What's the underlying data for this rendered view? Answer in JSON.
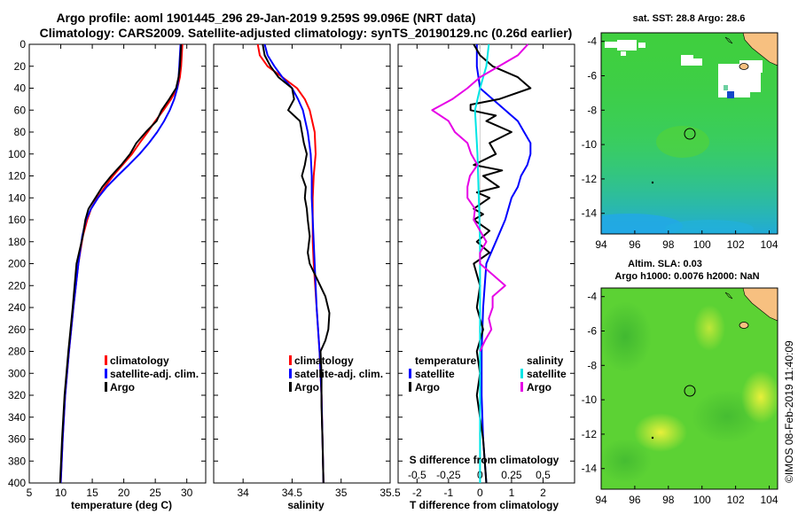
{
  "titles": {
    "line1": "Argo profile: aoml 1901445_296 29-Jan-2019 9.259S 99.096E (NRT data)",
    "line2": "Climatology: CARS2009. Satellite-adjusted climatology: synTS_20190129.nc (0.26d earlier)"
  },
  "colors": {
    "climatology": "#ff0000",
    "satellite": "#0000ff",
    "argo": "#000000",
    "sat_salinity": "#00e5e5",
    "argo_salinity": "#e600e6"
  },
  "chart_data": [
    {
      "id": "temperature",
      "type": "line",
      "xlabel": "temperature (deg C)",
      "ylabel": "",
      "xlim": [
        5,
        33
      ],
      "ylim": [
        400,
        0
      ],
      "x_ticks": [
        5,
        10,
        15,
        20,
        25,
        30
      ],
      "y_ticks": [
        0,
        20,
        40,
        60,
        80,
        100,
        120,
        140,
        160,
        180,
        200,
        220,
        240,
        260,
        280,
        300,
        320,
        340,
        360,
        380,
        400
      ],
      "legend": [
        "climatology",
        "satellite-adj. clim.",
        "Argo"
      ],
      "series": [
        {
          "name": "climatology",
          "color": "#ff0000",
          "depth": [
            0,
            10,
            20,
            30,
            40,
            50,
            60,
            70,
            80,
            90,
            100,
            110,
            120,
            130,
            140,
            150,
            160,
            175,
            200,
            240,
            280,
            320,
            360,
            400
          ],
          "values": [
            29.3,
            29.2,
            29.1,
            28.9,
            28.5,
            27.5,
            26.3,
            25.0,
            23.8,
            22.5,
            21.3,
            19.8,
            18.3,
            17.0,
            15.8,
            14.8,
            14.2,
            13.5,
            12.8,
            12.0,
            11.3,
            10.7,
            10.3,
            10.0
          ]
        },
        {
          "name": "satellite-adj. clim.",
          "color": "#0000ff",
          "depth": [
            0,
            10,
            20,
            30,
            40,
            50,
            60,
            70,
            80,
            90,
            100,
            110,
            120,
            130,
            140,
            150,
            160,
            175,
            200,
            240,
            280,
            320,
            360,
            400
          ],
          "values": [
            29.0,
            28.9,
            28.8,
            28.7,
            28.5,
            28.0,
            27.3,
            26.4,
            25.3,
            24.0,
            22.5,
            20.8,
            19.0,
            17.3,
            15.9,
            14.8,
            14.0,
            13.4,
            12.8,
            12.0,
            11.3,
            10.7,
            10.3,
            10.0
          ]
        },
        {
          "name": "Argo",
          "color": "#000000",
          "depth": [
            0,
            10,
            20,
            30,
            40,
            50,
            60,
            70,
            80,
            90,
            100,
            110,
            120,
            130,
            140,
            150,
            160,
            175,
            200,
            240,
            280,
            320,
            360,
            400
          ],
          "values": [
            29.1,
            29.0,
            28.9,
            28.7,
            28.3,
            27.2,
            26.0,
            25.2,
            23.5,
            22.0,
            21.0,
            19.6,
            18.0,
            16.6,
            15.5,
            14.4,
            13.9,
            13.5,
            12.5,
            11.9,
            11.2,
            10.6,
            10.2,
            9.9
          ]
        }
      ]
    },
    {
      "id": "salinity",
      "type": "line",
      "xlabel": "salinity",
      "ylabel": "",
      "xlim": [
        33.7,
        35.5
      ],
      "ylim": [
        400,
        0
      ],
      "x_ticks": [
        34,
        34.5,
        35,
        35.5
      ],
      "legend": [
        "climatology",
        "satellite-adj. clim.",
        "Argo"
      ],
      "series": [
        {
          "name": "climatology",
          "color": "#ff0000",
          "depth": [
            0,
            10,
            20,
            30,
            40,
            50,
            60,
            80,
            100,
            120,
            140,
            160,
            180,
            200,
            240,
            280,
            320,
            360,
            400
          ],
          "values": [
            34.15,
            34.17,
            34.25,
            34.4,
            34.55,
            34.63,
            34.68,
            34.73,
            34.74,
            34.72,
            34.71,
            34.71,
            34.71,
            34.72,
            34.75,
            34.78,
            34.8,
            34.81,
            34.82
          ]
        },
        {
          "name": "satellite-adj. clim.",
          "color": "#0000ff",
          "depth": [
            0,
            10,
            20,
            30,
            40,
            50,
            60,
            80,
            100,
            120,
            140,
            160,
            180,
            200,
            240,
            280,
            320,
            360,
            400
          ],
          "values": [
            34.22,
            34.25,
            34.32,
            34.4,
            34.5,
            34.56,
            34.61,
            34.66,
            34.69,
            34.7,
            34.7,
            34.71,
            34.72,
            34.73,
            34.75,
            34.78,
            34.8,
            34.81,
            34.82
          ]
        },
        {
          "name": "Argo",
          "color": "#000000",
          "depth": [
            0,
            10,
            20,
            30,
            40,
            50,
            60,
            70,
            80,
            90,
            100,
            110,
            120,
            130,
            140,
            150,
            160,
            175,
            190,
            200,
            215,
            230,
            245,
            260,
            270,
            280,
            300,
            330,
            360,
            400
          ],
          "values": [
            34.2,
            34.22,
            34.28,
            34.36,
            34.5,
            34.52,
            34.46,
            34.58,
            34.6,
            34.62,
            34.65,
            34.63,
            34.6,
            34.64,
            34.63,
            34.65,
            34.66,
            34.68,
            34.66,
            34.68,
            34.76,
            34.84,
            34.88,
            34.87,
            34.84,
            34.79,
            34.8,
            34.8,
            34.81,
            34.82
          ]
        }
      ]
    },
    {
      "id": "difference",
      "type": "line",
      "xlabel": "T difference from climatology",
      "xlabel_top": "S difference from climatology",
      "xlim": [
        -2.6,
        3.0
      ],
      "x_ticks": [
        -2,
        -1,
        0,
        1,
        2
      ],
      "x_ticks_s": [
        -0.5,
        -0.25,
        0,
        0.25,
        0.5
      ],
      "x_ticks_s_labels": [
        "-0.5",
        "-0.25",
        "0",
        "0.25",
        "0.5"
      ],
      "ylim": [
        400,
        0
      ],
      "legend_temperature": {
        "title": "temperature",
        "items": [
          "satellite",
          "Argo"
        ]
      },
      "legend_salinity": {
        "title": "salinity",
        "items": [
          "satellite",
          "Argo"
        ]
      },
      "series": [
        {
          "name": "temperature satellite",
          "color": "#0000ff",
          "depth": [
            0,
            20,
            40,
            50,
            60,
            70,
            80,
            90,
            100,
            110,
            120,
            130,
            140,
            160,
            180,
            200,
            240,
            280,
            320,
            360,
            400
          ],
          "values": [
            -0.1,
            -0.1,
            0.0,
            0.4,
            0.8,
            1.2,
            1.4,
            1.6,
            1.6,
            1.5,
            1.3,
            1.2,
            1.0,
            0.8,
            0.5,
            0.2,
            0.1,
            0.05,
            0.05,
            0.1,
            0.2
          ]
        },
        {
          "name": "temperature Argo",
          "color": "#000000",
          "depth": [
            0,
            10,
            20,
            30,
            40,
            50,
            55,
            60,
            65,
            70,
            80,
            90,
            100,
            110,
            115,
            120,
            130,
            135,
            140,
            150,
            155,
            160,
            170,
            180,
            190,
            200,
            220,
            240,
            260,
            280,
            300,
            320,
            360,
            400
          ],
          "values": [
            -0.2,
            0.0,
            0.4,
            1.2,
            1.6,
            0.6,
            -0.3,
            -0.3,
            0.5,
            0.2,
            1.0,
            0.3,
            0.5,
            -0.2,
            0.7,
            0.1,
            0.6,
            -0.1,
            0.3,
            -0.2,
            0.1,
            -0.2,
            0.3,
            -0.1,
            0.3,
            -0.2,
            0.0,
            -0.1,
            0.1,
            -0.1,
            0.0,
            -0.1,
            0.1,
            0.2
          ]
        },
        {
          "name": "salinity satellite",
          "color": "#00e5e5",
          "depth": [
            0,
            20,
            40,
            60,
            80,
            100,
            140,
            180,
            200,
            240,
            280,
            320,
            360,
            400
          ],
          "values": [
            0.07,
            0.05,
            0.0,
            -0.04,
            -0.03,
            -0.02,
            -0.01,
            0.0,
            0.0,
            0.0,
            0.0,
            0.0,
            0.0,
            0.0
          ]
        },
        {
          "name": "salinity Argo",
          "color": "#e600e6",
          "depth": [
            0,
            10,
            20,
            30,
            40,
            50,
            60,
            70,
            80,
            90,
            100,
            110,
            120,
            130,
            140,
            150,
            160,
            170,
            180,
            190,
            200,
            210,
            220,
            230,
            240,
            250,
            260,
            270,
            280
          ],
          "values": [
            0.38,
            0.3,
            0.15,
            0.0,
            -0.1,
            -0.22,
            -0.38,
            -0.25,
            -0.2,
            -0.1,
            -0.07,
            -0.02,
            -0.08,
            -0.1,
            -0.1,
            -0.04,
            -0.05,
            0.0,
            0.05,
            0.0,
            0.0,
            0.1,
            0.2,
            0.1,
            0.1,
            0.07,
            0.09,
            0.04,
            0.0
          ]
        }
      ]
    }
  ],
  "maps": [
    {
      "id": "sst-map",
      "title": "sat. SST: 28.8 Argo: 28.6",
      "x_ticks": [
        "94",
        "96",
        "98",
        "100",
        "102",
        "104"
      ],
      "y_ticks": [
        "-4",
        "-6",
        "-8",
        "-10",
        "-12",
        "-14"
      ],
      "lon_range": [
        94,
        104.5
      ],
      "lat_range": [
        -3.5,
        -15.2
      ],
      "argo_position": {
        "lon": 99.1,
        "lat": -9.26
      }
    },
    {
      "id": "sla-map",
      "title_line1": "Altim. SLA: 0.03",
      "title_line2": "Argo h1000: 0.0076 h2000: NaN",
      "x_ticks": [
        "94",
        "96",
        "98",
        "100",
        "102",
        "104"
      ],
      "y_ticks": [
        "-4",
        "-6",
        "-8",
        "-10",
        "-12",
        "-14"
      ],
      "lon_range": [
        94,
        104.5
      ],
      "lat_range": [
        -3.5,
        -15.2
      ],
      "argo_position": {
        "lon": 99.1,
        "lat": -9.26
      }
    }
  ],
  "credit": "©IMOS 08-Feb-2019 11:40:09"
}
